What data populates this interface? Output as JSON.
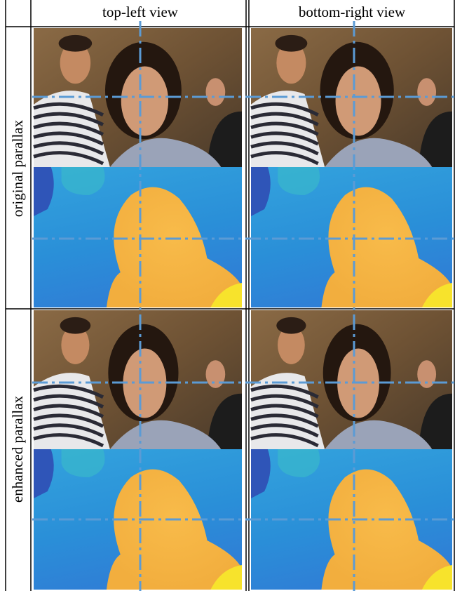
{
  "header": {
    "columns": [
      "top-left view",
      "bottom-right view"
    ]
  },
  "rows": [
    {
      "label": "original parallax"
    },
    {
      "label": "enhanced parallax"
    }
  ]
}
